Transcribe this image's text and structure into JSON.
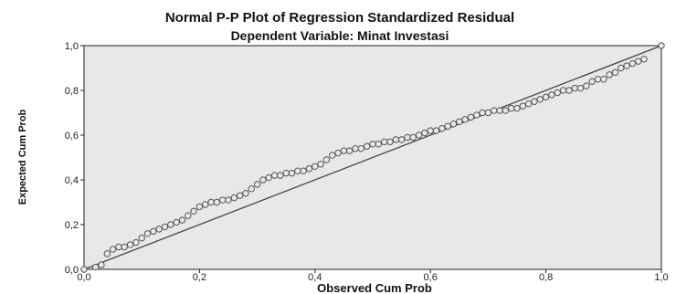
{
  "chart_data": {
    "type": "scatter",
    "title": "Normal P-P Plot of Regression Standardized Residual",
    "subtitle": "Dependent Variable: Minat Investasi",
    "xlabel": "Observed Cum Prob",
    "ylabel": "Expected Cum Prob",
    "xlim": [
      0,
      1
    ],
    "ylim": [
      0,
      1
    ],
    "x_ticks": [
      "0,0",
      "0,2",
      "0,4",
      "0,6",
      "0,8",
      "1,0"
    ],
    "y_ticks": [
      "0,0",
      "0,2",
      "0,4",
      "0,6",
      "0,8",
      "1,0"
    ],
    "grid": false,
    "reference_line": {
      "from": [
        0,
        0
      ],
      "to": [
        1,
        1
      ]
    },
    "series": [
      {
        "points": [
          [
            0.0,
            0.0
          ],
          [
            0.02,
            0.01
          ],
          [
            0.03,
            0.02
          ],
          [
            0.04,
            0.07
          ],
          [
            0.05,
            0.09
          ],
          [
            0.06,
            0.1
          ],
          [
            0.07,
            0.1
          ],
          [
            0.08,
            0.11
          ],
          [
            0.09,
            0.12
          ],
          [
            0.1,
            0.14
          ],
          [
            0.11,
            0.16
          ],
          [
            0.12,
            0.17
          ],
          [
            0.13,
            0.18
          ],
          [
            0.14,
            0.19
          ],
          [
            0.15,
            0.2
          ],
          [
            0.16,
            0.21
          ],
          [
            0.17,
            0.22
          ],
          [
            0.18,
            0.24
          ],
          [
            0.19,
            0.26
          ],
          [
            0.2,
            0.28
          ],
          [
            0.21,
            0.29
          ],
          [
            0.22,
            0.3
          ],
          [
            0.23,
            0.3
          ],
          [
            0.24,
            0.31
          ],
          [
            0.25,
            0.31
          ],
          [
            0.26,
            0.32
          ],
          [
            0.27,
            0.33
          ],
          [
            0.28,
            0.34
          ],
          [
            0.29,
            0.36
          ],
          [
            0.3,
            0.38
          ],
          [
            0.31,
            0.4
          ],
          [
            0.32,
            0.41
          ],
          [
            0.33,
            0.42
          ],
          [
            0.34,
            0.42
          ],
          [
            0.35,
            0.43
          ],
          [
            0.36,
            0.43
          ],
          [
            0.37,
            0.44
          ],
          [
            0.38,
            0.44
          ],
          [
            0.39,
            0.45
          ],
          [
            0.4,
            0.46
          ],
          [
            0.41,
            0.47
          ],
          [
            0.42,
            0.49
          ],
          [
            0.43,
            0.51
          ],
          [
            0.44,
            0.52
          ],
          [
            0.45,
            0.53
          ],
          [
            0.46,
            0.53
          ],
          [
            0.47,
            0.54
          ],
          [
            0.48,
            0.54
          ],
          [
            0.49,
            0.55
          ],
          [
            0.5,
            0.56
          ],
          [
            0.51,
            0.56
          ],
          [
            0.52,
            0.57
          ],
          [
            0.53,
            0.57
          ],
          [
            0.54,
            0.58
          ],
          [
            0.55,
            0.58
          ],
          [
            0.56,
            0.59
          ],
          [
            0.57,
            0.59
          ],
          [
            0.58,
            0.6
          ],
          [
            0.59,
            0.61
          ],
          [
            0.6,
            0.62
          ],
          [
            0.61,
            0.62
          ],
          [
            0.62,
            0.63
          ],
          [
            0.63,
            0.64
          ],
          [
            0.64,
            0.65
          ],
          [
            0.65,
            0.66
          ],
          [
            0.66,
            0.67
          ],
          [
            0.67,
            0.68
          ],
          [
            0.68,
            0.69
          ],
          [
            0.69,
            0.7
          ],
          [
            0.7,
            0.7
          ],
          [
            0.71,
            0.71
          ],
          [
            0.72,
            0.71
          ],
          [
            0.73,
            0.71
          ],
          [
            0.74,
            0.72
          ],
          [
            0.75,
            0.72
          ],
          [
            0.76,
            0.73
          ],
          [
            0.77,
            0.74
          ],
          [
            0.78,
            0.75
          ],
          [
            0.79,
            0.76
          ],
          [
            0.8,
            0.77
          ],
          [
            0.81,
            0.78
          ],
          [
            0.82,
            0.79
          ],
          [
            0.83,
            0.8
          ],
          [
            0.84,
            0.8
          ],
          [
            0.85,
            0.81
          ],
          [
            0.86,
            0.81
          ],
          [
            0.87,
            0.82
          ],
          [
            0.88,
            0.84
          ],
          [
            0.89,
            0.85
          ],
          [
            0.9,
            0.85
          ],
          [
            0.91,
            0.87
          ],
          [
            0.92,
            0.88
          ],
          [
            0.93,
            0.9
          ],
          [
            0.94,
            0.91
          ],
          [
            0.95,
            0.92
          ],
          [
            0.96,
            0.93
          ],
          [
            0.97,
            0.94
          ],
          [
            1.0,
            1.0
          ]
        ]
      }
    ],
    "colors": {
      "plot_background": "#e8e8e8",
      "marker_fill": "#e8e8e8",
      "marker_stroke": "#555555",
      "reference_line": "#444444",
      "axis": "#222222"
    }
  }
}
